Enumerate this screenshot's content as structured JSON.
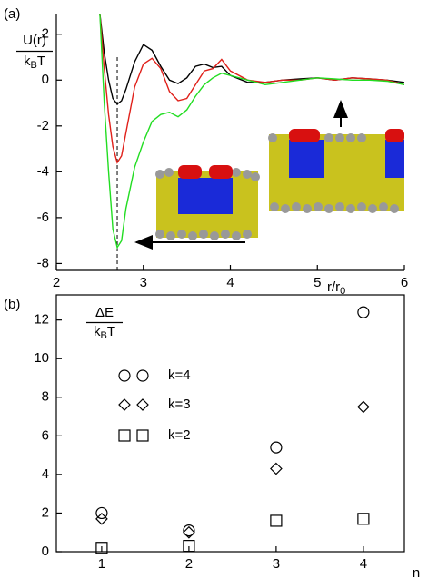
{
  "chart_data": [
    {
      "type": "line",
      "panel_label": "(a)",
      "y_label": {
        "numerator": "U(r)",
        "denominator": [
          "k",
          "B",
          "T"
        ]
      },
      "x_label": [
        "r/r",
        "0"
      ],
      "x": [
        2.5,
        2.55,
        2.6,
        2.65,
        2.7,
        2.75,
        2.8,
        2.9,
        3.0,
        3.1,
        3.2,
        3.3,
        3.4,
        3.5,
        3.6,
        3.7,
        3.8,
        3.9,
        4.0,
        4.2,
        4.4,
        4.6,
        4.8,
        5.0,
        5.2,
        5.4,
        5.6,
        5.8,
        6.0
      ],
      "series": [
        {
          "color": "#000000",
          "values": [
            2.9,
            1.2,
            0.0,
            -0.8,
            -1.05,
            -0.9,
            -0.4,
            0.8,
            1.55,
            1.3,
            0.6,
            0.0,
            -0.15,
            0.1,
            0.6,
            0.7,
            0.55,
            0.6,
            0.2,
            -0.1,
            -0.1,
            0.0,
            0.05,
            0.1,
            0.0,
            0.1,
            0.05,
            0.0,
            -0.1
          ]
        },
        {
          "color": "#e0201a",
          "values": [
            2.9,
            0.5,
            -1.5,
            -2.9,
            -3.6,
            -3.3,
            -2.3,
            -0.3,
            0.7,
            0.95,
            0.5,
            -0.5,
            -0.9,
            -0.8,
            -0.2,
            0.4,
            0.5,
            0.9,
            0.4,
            0.0,
            -0.1,
            0.0,
            0.0,
            0.1,
            0.0,
            0.1,
            0.05,
            0.0,
            -0.2
          ]
        },
        {
          "color": "#22dd22",
          "values": [
            2.9,
            -1.0,
            -4.0,
            -6.5,
            -7.3,
            -7.0,
            -5.6,
            -3.8,
            -2.7,
            -1.8,
            -1.5,
            -1.4,
            -1.6,
            -1.3,
            -0.7,
            -0.2,
            0.1,
            0.3,
            0.2,
            0.0,
            -0.2,
            -0.1,
            0.0,
            0.1,
            0.05,
            0.0,
            0.0,
            -0.05,
            -0.2
          ]
        }
      ],
      "reference_x": 2.7,
      "xlim": [
        2,
        6
      ],
      "ylim": [
        -8.3,
        2.9
      ],
      "xticks": [
        2,
        3,
        4,
        5,
        6
      ],
      "yticks": [
        -8,
        -6,
        -4,
        -2,
        0,
        2
      ]
    },
    {
      "type": "scatter",
      "panel_label": "(b)",
      "y_label": {
        "numerator": "ΔE",
        "denominator": [
          "k",
          "B",
          "T"
        ]
      },
      "x_label": "n",
      "x": [
        1,
        2,
        3,
        4
      ],
      "series": [
        {
          "name": "k=4",
          "marker": "circle",
          "color": "#000000",
          "values": [
            2.0,
            1.1,
            5.4,
            12.4
          ]
        },
        {
          "name": "k=3",
          "marker": "diamond",
          "color": "#000000",
          "values": [
            1.7,
            1.0,
            4.3,
            7.5
          ]
        },
        {
          "name": "k=2",
          "marker": "square",
          "color": "#000000",
          "values": [
            0.2,
            0.3,
            1.6,
            1.7
          ]
        }
      ],
      "xlim": [
        0.48,
        4.47
      ],
      "ylim": [
        0,
        13.3
      ],
      "xticks": [
        1,
        2,
        3,
        4
      ],
      "yticks": [
        0,
        2,
        4,
        6,
        8,
        10,
        12
      ]
    }
  ]
}
